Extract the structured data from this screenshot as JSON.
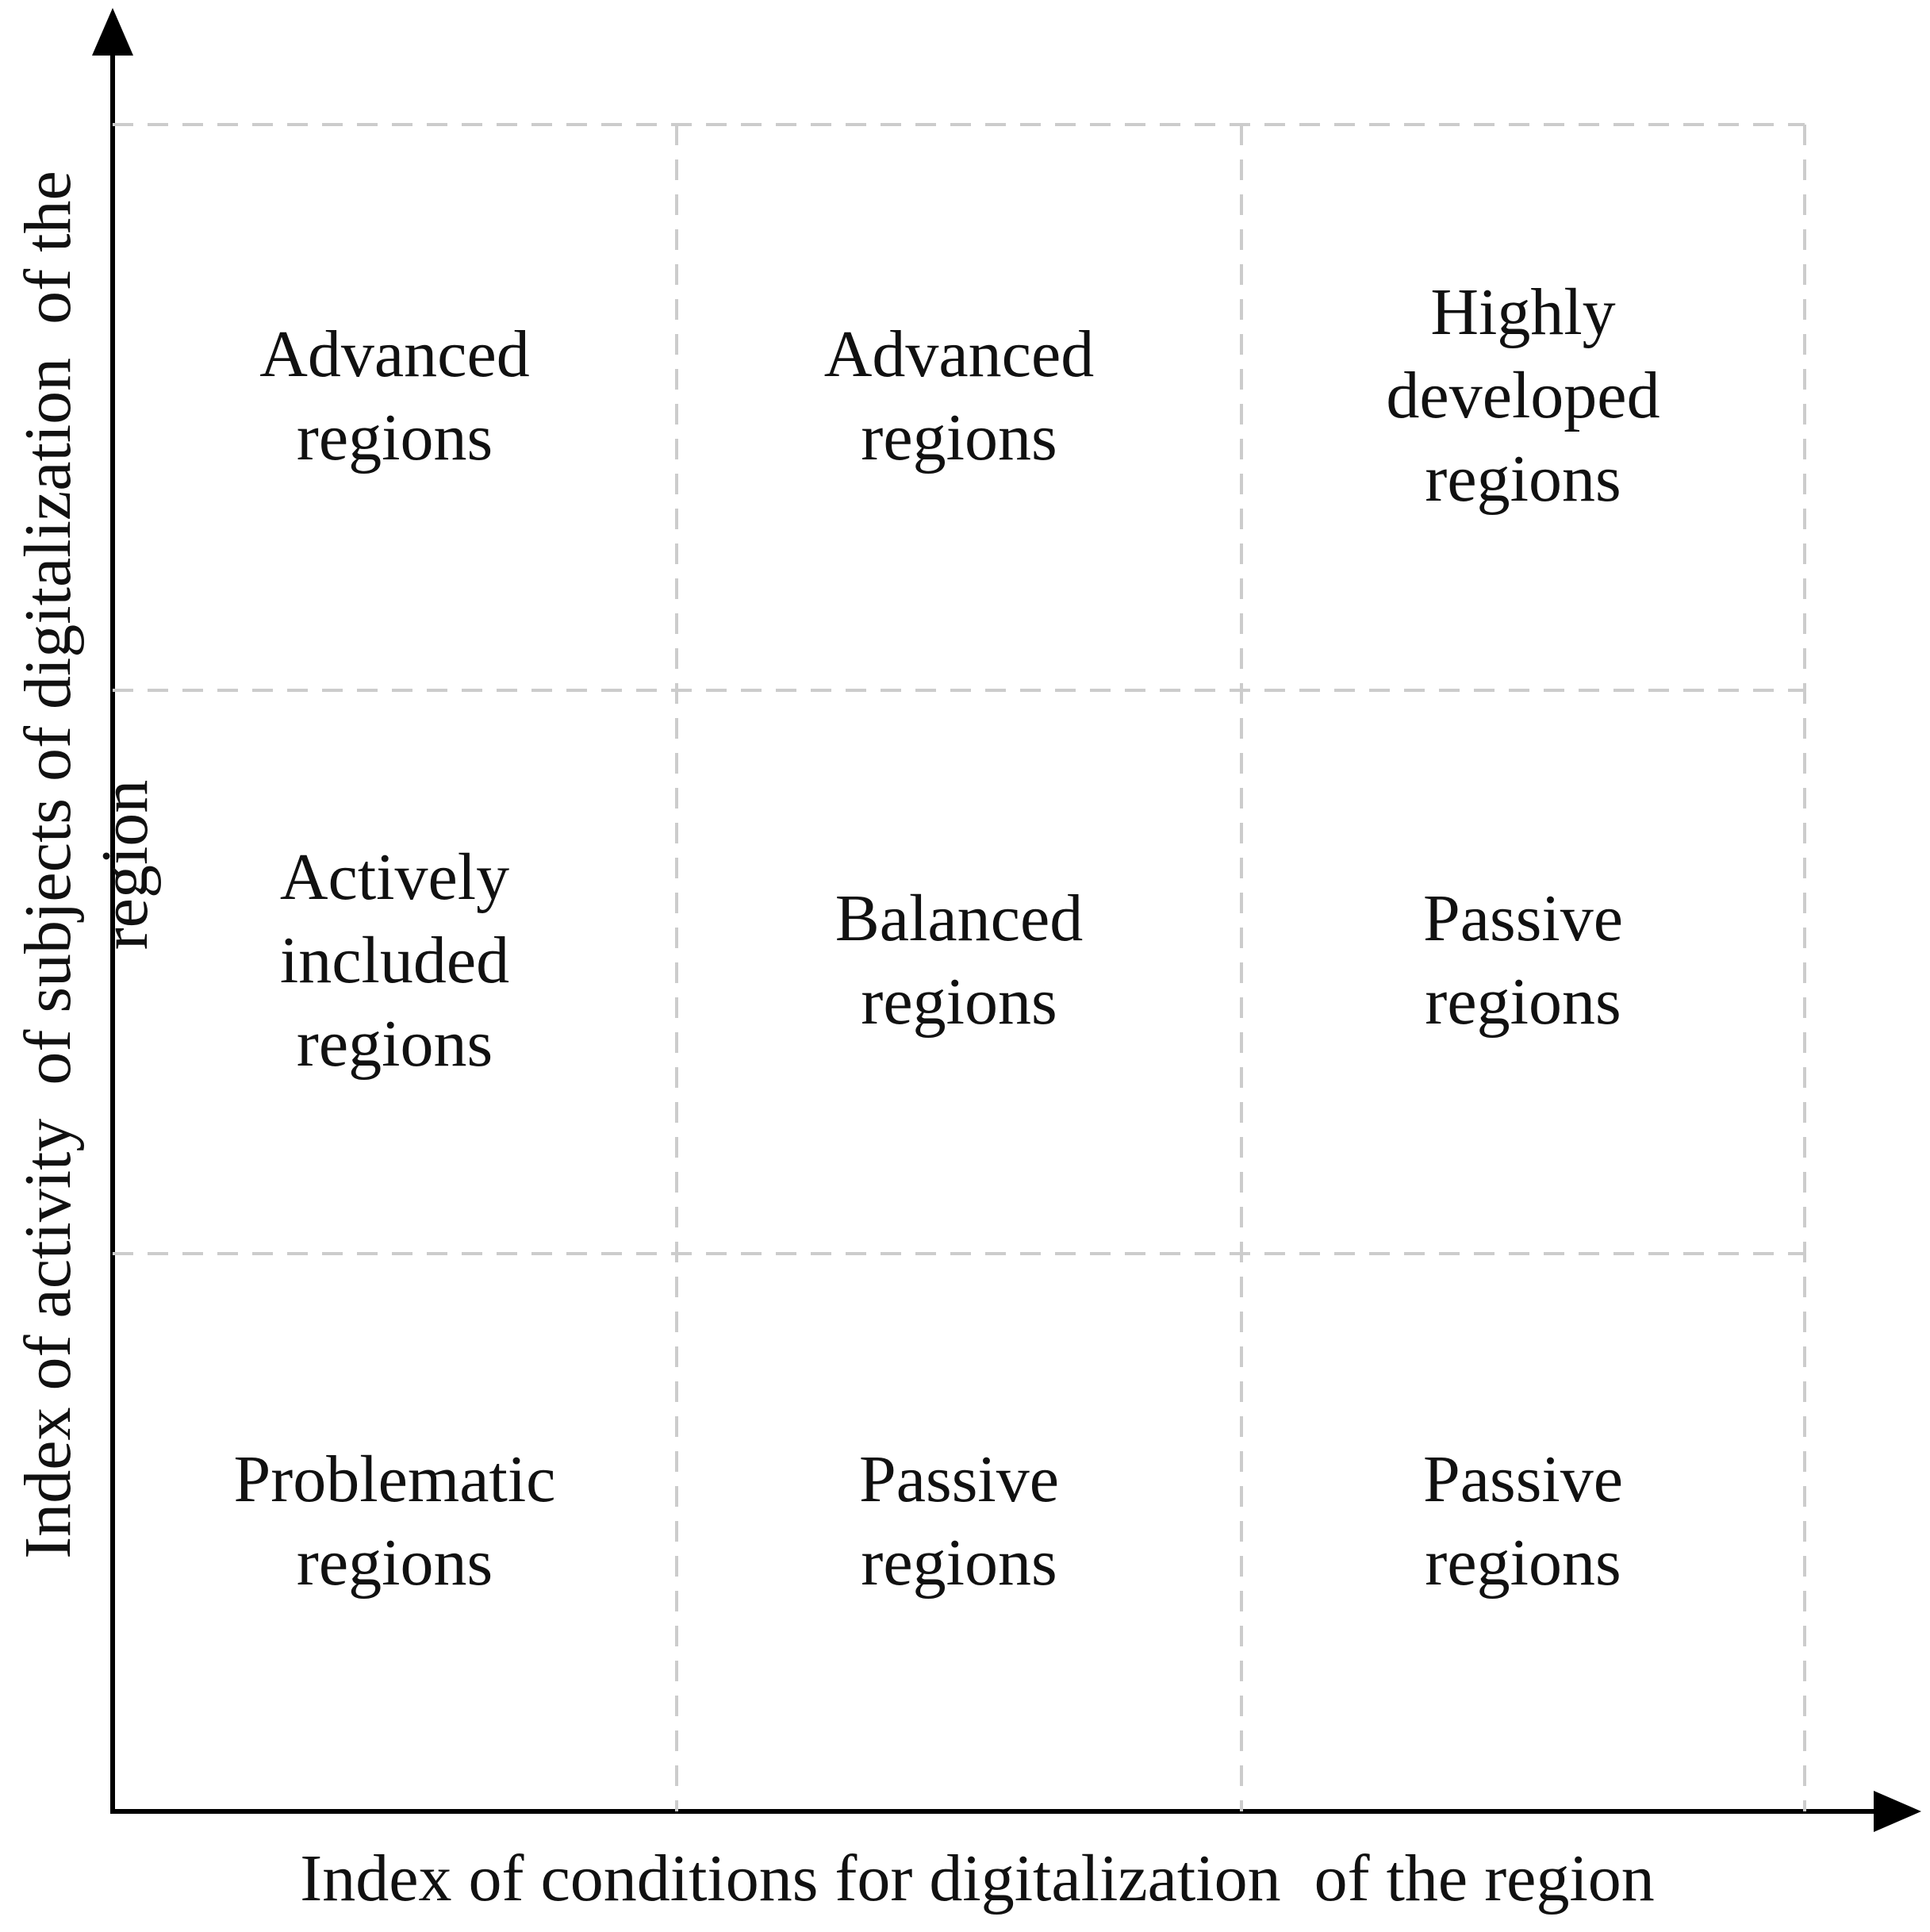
{
  "diagram": {
    "y_axis": {
      "label": "Index of activity  of subjects of digitalization  of the region"
    },
    "x_axis": {
      "label": "Index of conditions for digitalization  of the region"
    },
    "colors": {
      "background": "#ffffff",
      "axis": "#000000",
      "grid_dash": "#cccccc",
      "text": "#111111"
    },
    "matrix": {
      "rows": 3,
      "cols": 3,
      "cells": [
        {
          "label": "Advanced\nregions"
        },
        {
          "label": "Advanced\nregions"
        },
        {
          "label": "Highly\ndeveloped\nregions"
        },
        {
          "label": "Actively\nincluded\nregions"
        },
        {
          "label": "Balanced\nregions"
        },
        {
          "label": "Passive\nregions"
        },
        {
          "label": "Problematic\nregions"
        },
        {
          "label": "Passive\nregions"
        },
        {
          "label": "Passive\nregions"
        }
      ]
    }
  }
}
